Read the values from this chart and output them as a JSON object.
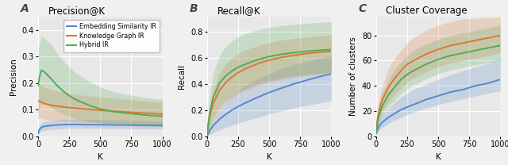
{
  "colors": {
    "blue": "#5588CC",
    "orange": "#DD7733",
    "green": "#55AA55"
  },
  "labels": [
    "Embedding Similarity IR",
    "Knowledge Graph IR",
    "Hybrid IR"
  ],
  "k_values": [
    1,
    10,
    25,
    50,
    100,
    150,
    200,
    250,
    300,
    400,
    500,
    600,
    700,
    800,
    900,
    1000
  ],
  "panel_A": {
    "title": "Precision@K",
    "ylabel": "Precision",
    "ylim": [
      0,
      0.45
    ],
    "yticks": [
      0.0,
      0.1,
      0.2,
      0.3,
      0.4
    ],
    "blue_mean": [
      0.01,
      0.025,
      0.032,
      0.037,
      0.04,
      0.042,
      0.043,
      0.044,
      0.044,
      0.043,
      0.043,
      0.042,
      0.042,
      0.041,
      0.041,
      0.04
    ],
    "blue_lo": [
      0.003,
      0.012,
      0.018,
      0.022,
      0.025,
      0.027,
      0.028,
      0.029,
      0.029,
      0.029,
      0.029,
      0.028,
      0.028,
      0.027,
      0.027,
      0.026
    ],
    "blue_hi": [
      0.018,
      0.042,
      0.05,
      0.056,
      0.06,
      0.062,
      0.063,
      0.064,
      0.064,
      0.063,
      0.062,
      0.061,
      0.06,
      0.059,
      0.058,
      0.057
    ],
    "orange_mean": [
      0.13,
      0.133,
      0.128,
      0.122,
      0.117,
      0.113,
      0.11,
      0.107,
      0.105,
      0.101,
      0.097,
      0.094,
      0.091,
      0.088,
      0.086,
      0.083
    ],
    "orange_lo": [
      0.065,
      0.068,
      0.066,
      0.063,
      0.06,
      0.058,
      0.056,
      0.055,
      0.054,
      0.052,
      0.05,
      0.048,
      0.047,
      0.045,
      0.044,
      0.043
    ],
    "orange_hi": [
      0.195,
      0.198,
      0.192,
      0.183,
      0.176,
      0.17,
      0.165,
      0.161,
      0.157,
      0.152,
      0.147,
      0.143,
      0.139,
      0.135,
      0.131,
      0.128
    ],
    "green_mean": [
      0.19,
      0.22,
      0.248,
      0.242,
      0.218,
      0.192,
      0.17,
      0.152,
      0.138,
      0.118,
      0.102,
      0.093,
      0.087,
      0.082,
      0.078,
      0.075
    ],
    "green_lo": [
      0.06,
      0.1,
      0.13,
      0.125,
      0.11,
      0.095,
      0.083,
      0.073,
      0.066,
      0.056,
      0.049,
      0.044,
      0.041,
      0.038,
      0.036,
      0.034
    ],
    "green_hi": [
      0.32,
      0.35,
      0.375,
      0.368,
      0.348,
      0.315,
      0.285,
      0.26,
      0.238,
      0.208,
      0.185,
      0.168,
      0.158,
      0.15,
      0.143,
      0.138
    ]
  },
  "panel_B": {
    "title": "Recall@K",
    "ylabel": "Recall",
    "ylim": [
      0.0,
      0.92
    ],
    "yticks": [
      0.0,
      0.2,
      0.4,
      0.6,
      0.8
    ],
    "blue_mean": [
      0.004,
      0.02,
      0.048,
      0.082,
      0.13,
      0.168,
      0.2,
      0.228,
      0.252,
      0.296,
      0.336,
      0.37,
      0.402,
      0.43,
      0.456,
      0.48
    ],
    "blue_lo": [
      0.001,
      0.006,
      0.015,
      0.028,
      0.048,
      0.066,
      0.083,
      0.1,
      0.115,
      0.143,
      0.17,
      0.194,
      0.216,
      0.236,
      0.254,
      0.272
    ],
    "blue_hi": [
      0.008,
      0.04,
      0.085,
      0.138,
      0.208,
      0.264,
      0.31,
      0.35,
      0.384,
      0.438,
      0.482,
      0.518,
      0.55,
      0.574,
      0.596,
      0.618
    ],
    "orange_mean": [
      0.008,
      0.085,
      0.168,
      0.252,
      0.352,
      0.412,
      0.455,
      0.488,
      0.514,
      0.555,
      0.585,
      0.606,
      0.622,
      0.635,
      0.645,
      0.652
    ],
    "orange_lo": [
      0.003,
      0.04,
      0.088,
      0.14,
      0.208,
      0.258,
      0.295,
      0.326,
      0.348,
      0.386,
      0.416,
      0.436,
      0.452,
      0.465,
      0.475,
      0.484
    ],
    "orange_hi": [
      0.015,
      0.138,
      0.252,
      0.358,
      0.486,
      0.554,
      0.6,
      0.636,
      0.66,
      0.694,
      0.718,
      0.738,
      0.752,
      0.762,
      0.77,
      0.778
    ],
    "green_mean": [
      0.01,
      0.105,
      0.202,
      0.3,
      0.408,
      0.464,
      0.5,
      0.53,
      0.55,
      0.586,
      0.612,
      0.63,
      0.642,
      0.652,
      0.66,
      0.666
    ],
    "green_lo": [
      0.001,
      0.03,
      0.08,
      0.14,
      0.218,
      0.272,
      0.31,
      0.34,
      0.362,
      0.4,
      0.428,
      0.448,
      0.462,
      0.474,
      0.483,
      0.49
    ],
    "green_hi": [
      0.022,
      0.195,
      0.355,
      0.488,
      0.618,
      0.69,
      0.732,
      0.764,
      0.786,
      0.816,
      0.836,
      0.851,
      0.86,
      0.868,
      0.874,
      0.878
    ]
  },
  "panel_C": {
    "title": "Cluster Coverage",
    "ylabel": "Number of clusters",
    "ylim": [
      0,
      95
    ],
    "yticks": [
      0,
      20,
      40,
      60,
      80
    ],
    "blue_mean": [
      2,
      5,
      8,
      11,
      15,
      18,
      21,
      23,
      25,
      29,
      32,
      35,
      37,
      40,
      42,
      45
    ],
    "blue_lo": [
      1,
      2.5,
      4.5,
      7,
      10,
      12.5,
      15,
      17,
      19,
      22,
      25,
      27.5,
      29.5,
      32,
      34,
      36
    ],
    "blue_hi": [
      3.5,
      9,
      13,
      17,
      22,
      27,
      31,
      34,
      37,
      41,
      45,
      49,
      52,
      55,
      58,
      62
    ],
    "orange_mean": [
      3,
      13,
      21,
      29,
      39,
      46,
      52,
      57,
      60,
      65,
      69,
      72,
      74,
      76,
      78,
      80
    ],
    "orange_lo": [
      1.5,
      7.5,
      13.5,
      19.5,
      27,
      33,
      38,
      43,
      46,
      51,
      55,
      58,
      60,
      62,
      64,
      66
    ],
    "orange_hi": [
      5.5,
      20,
      30,
      40,
      54,
      62,
      68,
      74,
      78,
      84,
      88,
      91,
      93,
      93.5,
      94,
      94.5
    ],
    "green_mean": [
      2.5,
      10,
      17,
      24,
      33,
      39,
      45,
      49,
      52,
      57,
      61,
      64,
      66,
      68,
      70,
      72
    ],
    "green_lo": [
      1.2,
      5.5,
      10.5,
      16.5,
      23.5,
      28.5,
      33.5,
      37.5,
      40.5,
      45.5,
      49.5,
      52.5,
      54.5,
      56.5,
      58.5,
      60.5
    ],
    "green_hi": [
      4.5,
      16,
      25,
      34,
      45,
      53,
      59,
      64,
      68,
      73,
      77,
      80,
      82,
      84,
      86,
      88
    ]
  },
  "xticks": [
    0,
    250,
    500,
    750,
    1000
  ],
  "xlabel": "K",
  "alpha_fill": 0.22,
  "linewidth": 1.4,
  "background_color": "#f0f0f0",
  "axes_facecolor": "#e8e8e8",
  "grid_color": "#ffffff",
  "label_fontsize": 7.5,
  "title_fontsize": 8.5,
  "tick_fontsize": 7,
  "panel_labels": [
    "A",
    "B",
    "C"
  ],
  "panel_label_fontsize": 10
}
